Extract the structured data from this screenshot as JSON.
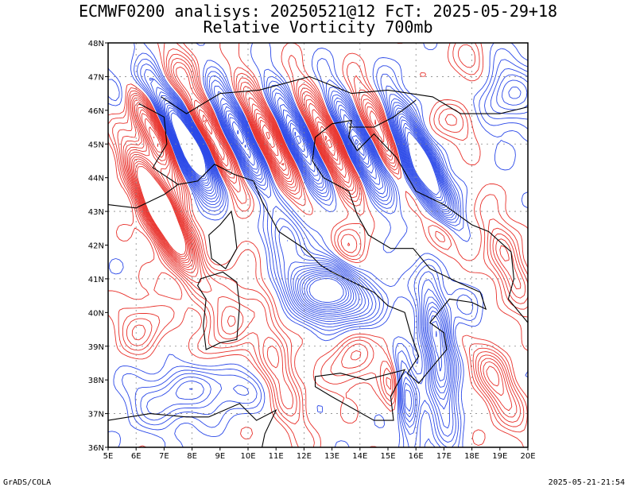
{
  "title_line1": "ECMWF0200 analisys: 20250521@12 FcT: 2025-05-29+18",
  "title_line2": "Relative Vorticity 700mb",
  "footer_left": "GrADS/COLA",
  "footer_right": "2025-05-21-21:54",
  "map": {
    "lon_range": [
      5,
      20
    ],
    "lat_range": [
      36,
      48
    ],
    "lon_ticks": [
      "5E",
      "6E",
      "7E",
      "8E",
      "9E",
      "10E",
      "11E",
      "12E",
      "13E",
      "14E",
      "15E",
      "16E",
      "17E",
      "18E",
      "19E",
      "20E"
    ],
    "lat_ticks": [
      "36N",
      "37N",
      "38N",
      "39N",
      "40N",
      "41N",
      "42N",
      "43N",
      "44N",
      "45N",
      "46N",
      "47N",
      "48N"
    ],
    "grid_lon_step": 2,
    "grid_lat_step": 2,
    "colors": {
      "positive": "#e8302a",
      "negative": "#2a48e8",
      "zero": "#c040c0",
      "coast": "#000000",
      "grid": "#888888"
    }
  }
}
